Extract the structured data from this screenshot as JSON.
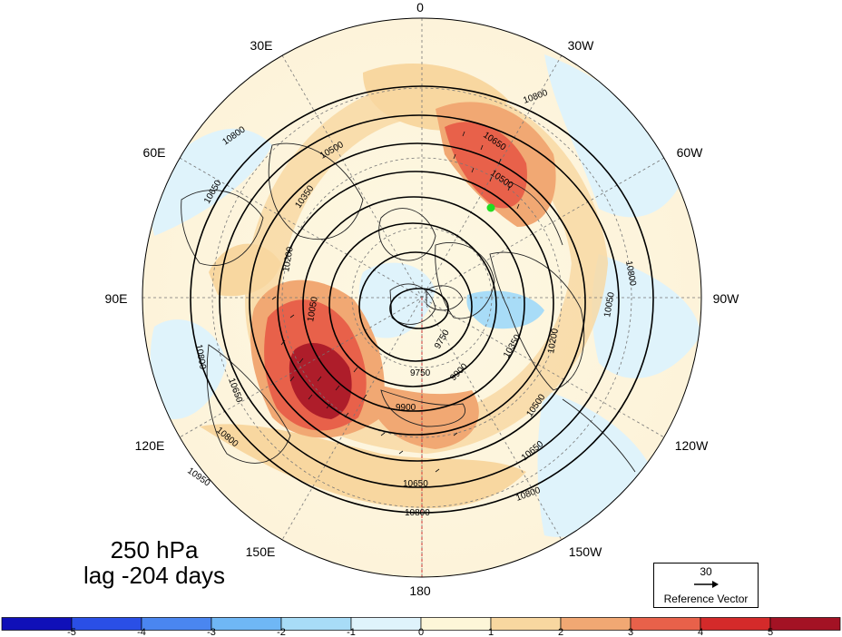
{
  "title": {
    "level": "250 hPa",
    "lag": "lag -204 days"
  },
  "map": {
    "projection": "north polar stereographic",
    "longitude_labels": [
      "0",
      "30W",
      "60W",
      "90W",
      "120W",
      "150W",
      "180",
      "150E",
      "120E",
      "90E",
      "60E",
      "30E"
    ],
    "contour_labels": [
      "10800",
      "10650",
      "10500",
      "10350",
      "10200",
      "10050",
      "9900",
      "9750",
      "10950"
    ],
    "marker": {
      "color": "#22dd22",
      "lon": "40W",
      "lat": "55N"
    }
  },
  "reference_vector": {
    "magnitude": "30",
    "label": "Reference Vector"
  },
  "colorbar": {
    "ticks": [
      "-5",
      "-4",
      "-3",
      "-2",
      "-1",
      "0",
      "1",
      "2",
      "3",
      "4",
      "5"
    ],
    "colors": [
      "#1010b8",
      "#2a4fe6",
      "#4a86f0",
      "#6fb7f5",
      "#a8dcf7",
      "#dff3fb",
      "#fdf6d8",
      "#f8d7a0",
      "#f1a873",
      "#e8614a",
      "#d42a2a",
      "#a31224"
    ]
  }
}
